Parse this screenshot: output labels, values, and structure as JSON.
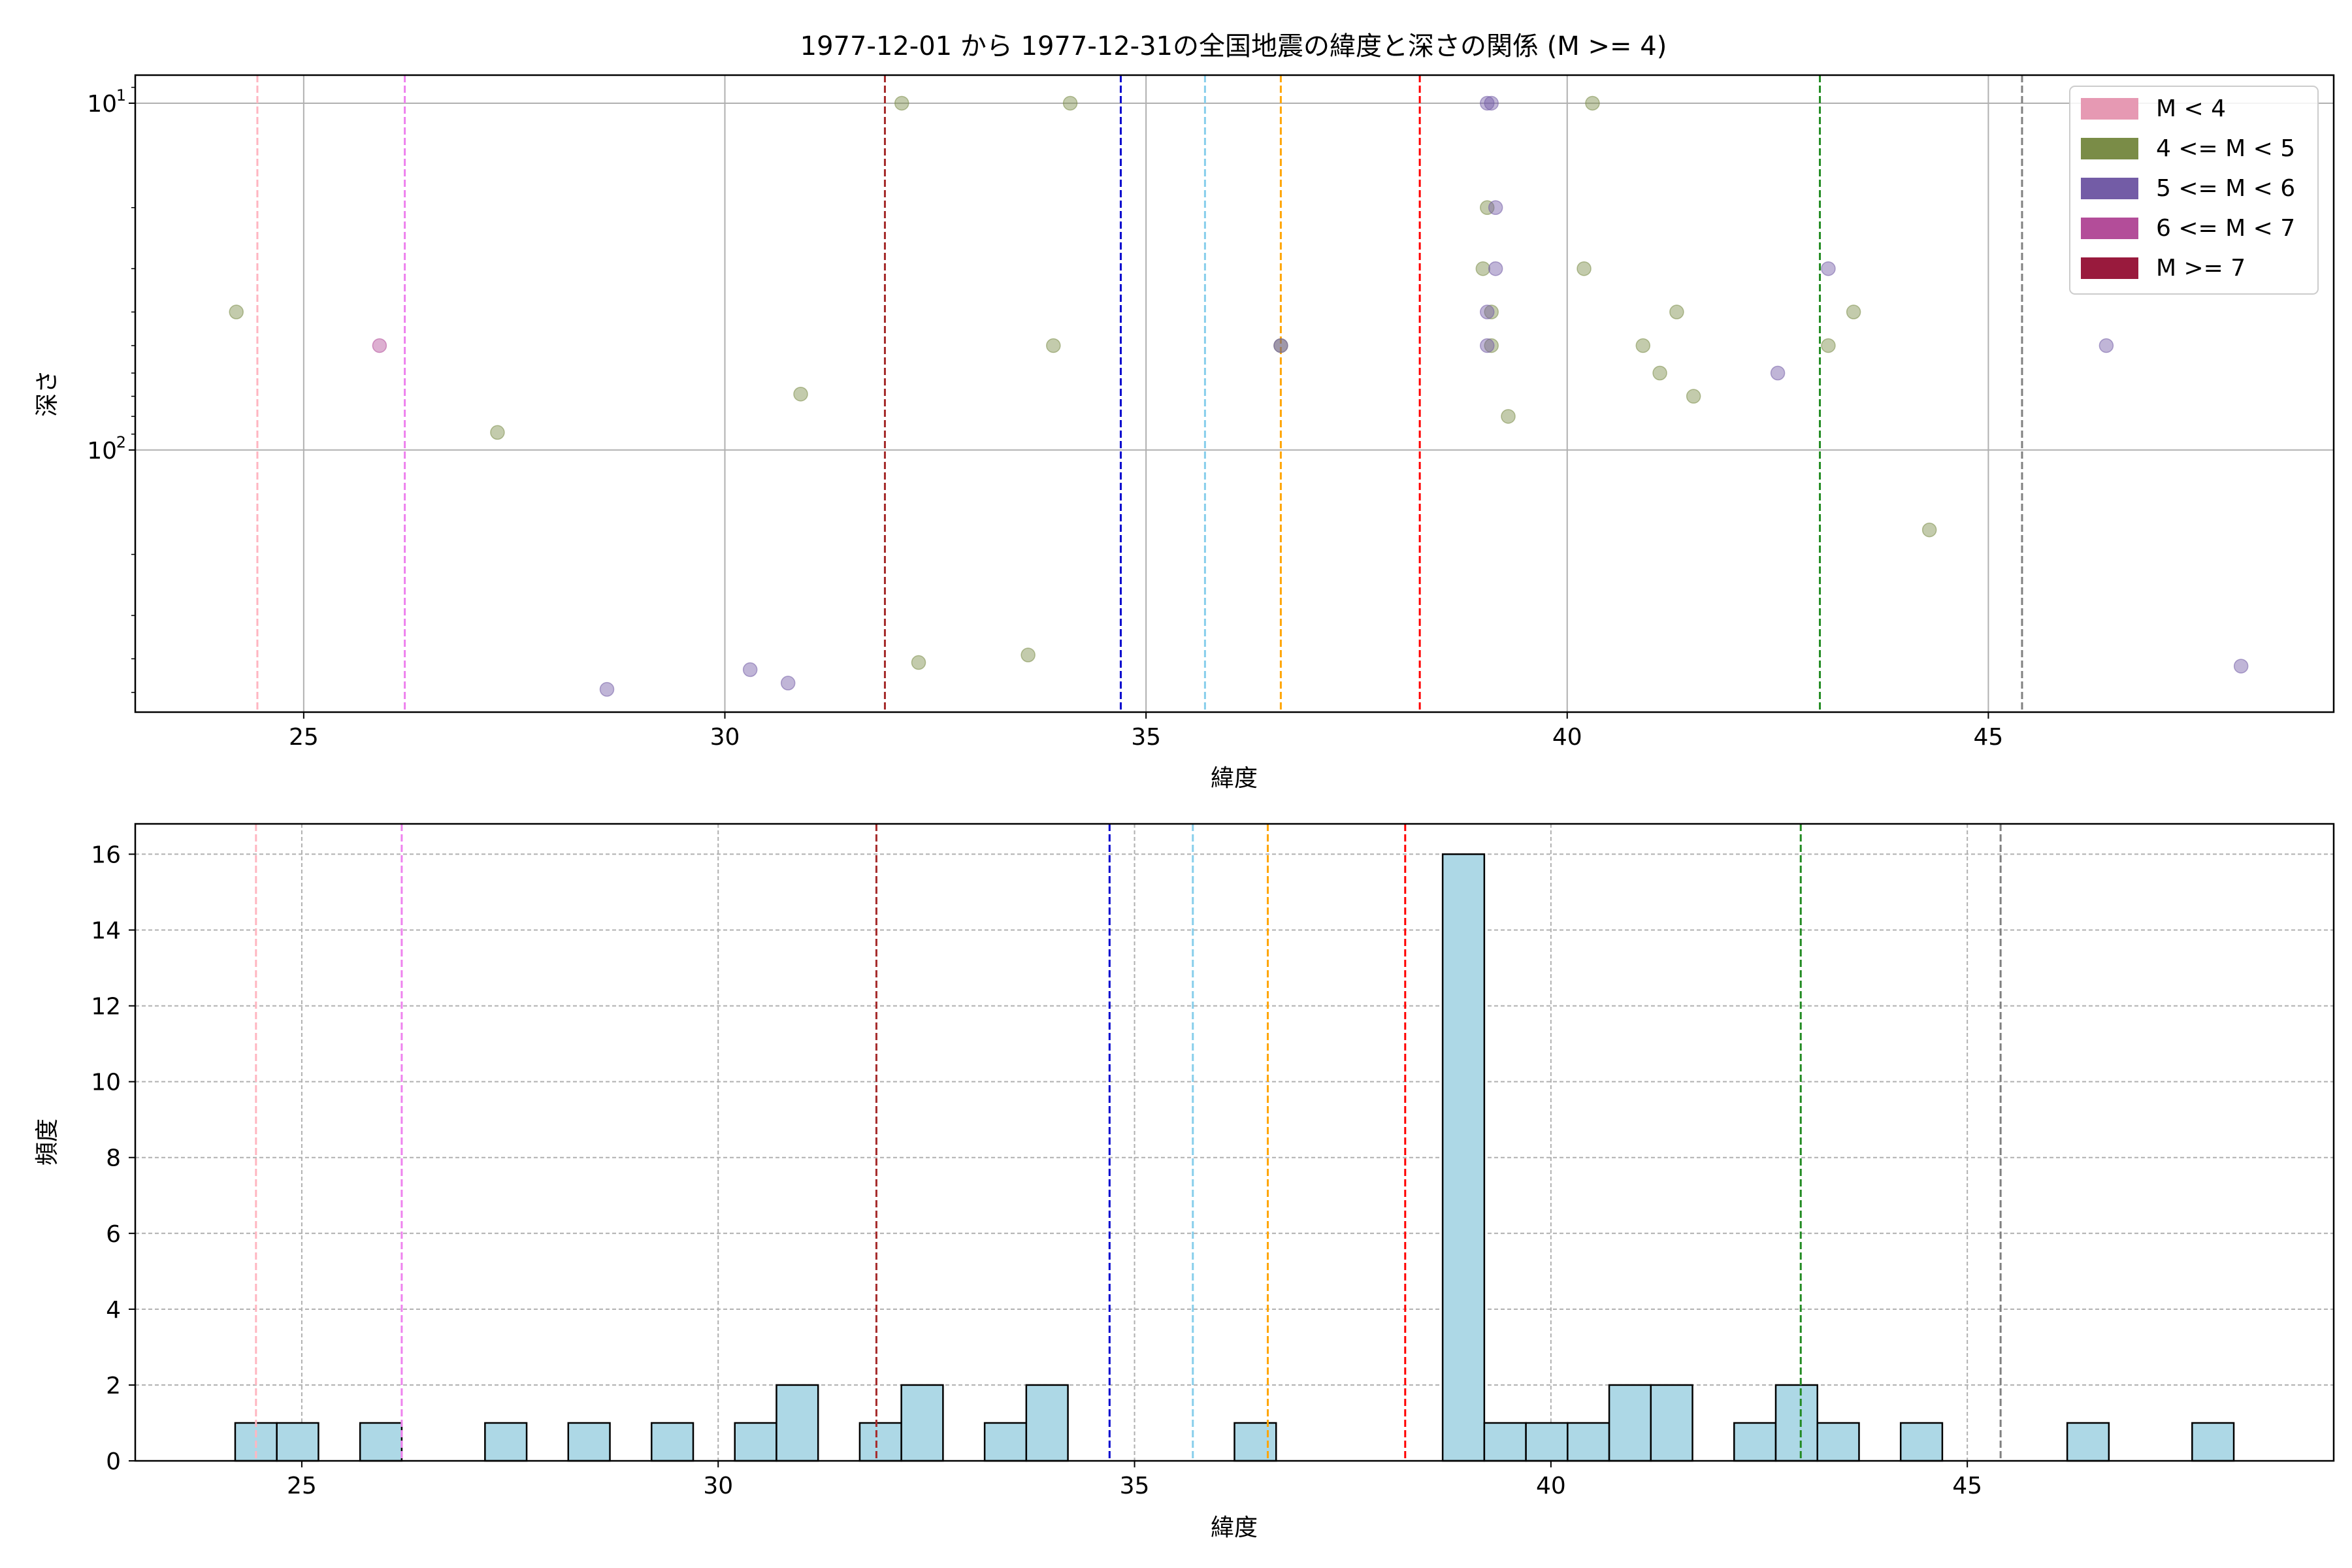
{
  "chart_data": [
    {
      "type": "scatter",
      "title": "1977-12-01 から 1977-12-31の全国地震の緯度と深さの関係 (M >= 4)",
      "xlabel": "緯度",
      "ylabel": "深さ",
      "xlim": [
        23.0,
        49.1
      ],
      "ylim": [
        570,
        8.3
      ],
      "yscale": "log",
      "y_inverted": true,
      "grid": true,
      "xticks": [
        25,
        30,
        35,
        40,
        45
      ],
      "yticks": [
        {
          "value": 10,
          "base": "10",
          "exp": "1"
        },
        {
          "value": 100,
          "base": "10",
          "exp": "2"
        }
      ],
      "legend": {
        "position": "top-right",
        "entries": [
          {
            "label": "M < 4",
            "color": "#e699b3"
          },
          {
            "label": "4 <= M < 5",
            "color": "#7a8c47"
          },
          {
            "label": "5 <= M < 6",
            "color": "#735ca6"
          },
          {
            "label": "6 <= M < 7",
            "color": "#b34d99"
          },
          {
            "label": "M >= 7",
            "color": "#991a3d"
          }
        ]
      },
      "vlines": [
        {
          "x": 24.45,
          "color": "#ffb6c1"
        },
        {
          "x": 26.2,
          "color": "#ee82ee"
        },
        {
          "x": 31.9,
          "color": "#a52a2a"
        },
        {
          "x": 34.7,
          "color": "#0000cd"
        },
        {
          "x": 35.7,
          "color": "#87ceeb"
        },
        {
          "x": 36.6,
          "color": "#ffa500"
        },
        {
          "x": 38.25,
          "color": "#ff0000"
        },
        {
          "x": 43.0,
          "color": "#228b22"
        },
        {
          "x": 45.4,
          "color": "#808080"
        }
      ],
      "series": [
        {
          "name": "4 <= M < 5",
          "color": "#7a8c47",
          "points": [
            [
              24.2,
              40
            ],
            [
              27.3,
              89
            ],
            [
              30.9,
              69
            ],
            [
              32.1,
              10
            ],
            [
              32.3,
              410
            ],
            [
              33.6,
              390
            ],
            [
              33.9,
              50
            ],
            [
              34.1,
              10
            ],
            [
              39.0,
              30
            ],
            [
              39.05,
              20
            ],
            [
              39.1,
              40
            ],
            [
              39.1,
              50
            ],
            [
              39.3,
              80
            ],
            [
              40.2,
              30
            ],
            [
              40.3,
              10
            ],
            [
              40.9,
              50
            ],
            [
              41.1,
              60
            ],
            [
              41.3,
              40
            ],
            [
              41.5,
              70
            ],
            [
              43.1,
              50
            ],
            [
              43.4,
              40
            ],
            [
              44.3,
              170
            ],
            [
              36.6,
              50
            ]
          ]
        },
        {
          "name": "5 <= M < 6",
          "color": "#735ca6",
          "points": [
            [
              28.6,
              490
            ],
            [
              30.3,
              430
            ],
            [
              30.75,
              470
            ],
            [
              36.6,
              50
            ],
            [
              39.1,
              10
            ],
            [
              39.05,
              10
            ],
            [
              39.15,
              20
            ],
            [
              39.15,
              30
            ],
            [
              39.05,
              40
            ],
            [
              39.05,
              50
            ],
            [
              42.5,
              60
            ],
            [
              43.1,
              30
            ],
            [
              46.4,
              50
            ],
            [
              48.0,
              420
            ]
          ]
        },
        {
          "name": "6 <= M < 7",
          "color": "#b34d99",
          "points": [
            [
              25.9,
              50
            ]
          ]
        }
      ]
    },
    {
      "type": "bar",
      "xlabel": "緯度",
      "ylabel": "頻度",
      "xlim": [
        23.0,
        49.4
      ],
      "ylim": [
        0,
        16.8
      ],
      "xticks": [
        25,
        30,
        35,
        40,
        45
      ],
      "yticks": [
        0,
        2,
        4,
        6,
        8,
        10,
        12,
        14,
        16
      ],
      "grid": true,
      "bar_color": "#add8e6",
      "bin_width": 0.5,
      "bins": [
        {
          "x0": 24.2,
          "count": 1
        },
        {
          "x0": 24.7,
          "count": 1
        },
        {
          "x0": 25.7,
          "count": 1
        },
        {
          "x0": 27.2,
          "count": 1
        },
        {
          "x0": 28.2,
          "count": 1
        },
        {
          "x0": 29.2,
          "count": 1
        },
        {
          "x0": 30.2,
          "count": 1
        },
        {
          "x0": 30.7,
          "count": 2
        },
        {
          "x0": 31.7,
          "count": 1
        },
        {
          "x0": 32.2,
          "count": 2
        },
        {
          "x0": 33.2,
          "count": 1
        },
        {
          "x0": 33.7,
          "count": 2
        },
        {
          "x0": 36.2,
          "count": 1
        },
        {
          "x0": 38.7,
          "count": 16
        },
        {
          "x0": 39.2,
          "count": 1
        },
        {
          "x0": 39.7,
          "count": 1
        },
        {
          "x0": 40.2,
          "count": 1
        },
        {
          "x0": 40.7,
          "count": 2
        },
        {
          "x0": 41.2,
          "count": 2
        },
        {
          "x0": 42.2,
          "count": 1
        },
        {
          "x0": 42.7,
          "count": 2
        },
        {
          "x0": 43.2,
          "count": 1
        },
        {
          "x0": 44.2,
          "count": 1
        },
        {
          "x0": 46.2,
          "count": 1
        },
        {
          "x0": 47.7,
          "count": 1
        }
      ],
      "vlines": [
        {
          "x": 24.45,
          "color": "#ffb6c1"
        },
        {
          "x": 26.2,
          "color": "#ee82ee"
        },
        {
          "x": 31.9,
          "color": "#a52a2a"
        },
        {
          "x": 34.7,
          "color": "#0000cd"
        },
        {
          "x": 35.7,
          "color": "#87ceeb"
        },
        {
          "x": 36.6,
          "color": "#ffa500"
        },
        {
          "x": 38.25,
          "color": "#ff0000"
        },
        {
          "x": 43.0,
          "color": "#228b22"
        },
        {
          "x": 45.4,
          "color": "#808080"
        }
      ]
    }
  ]
}
